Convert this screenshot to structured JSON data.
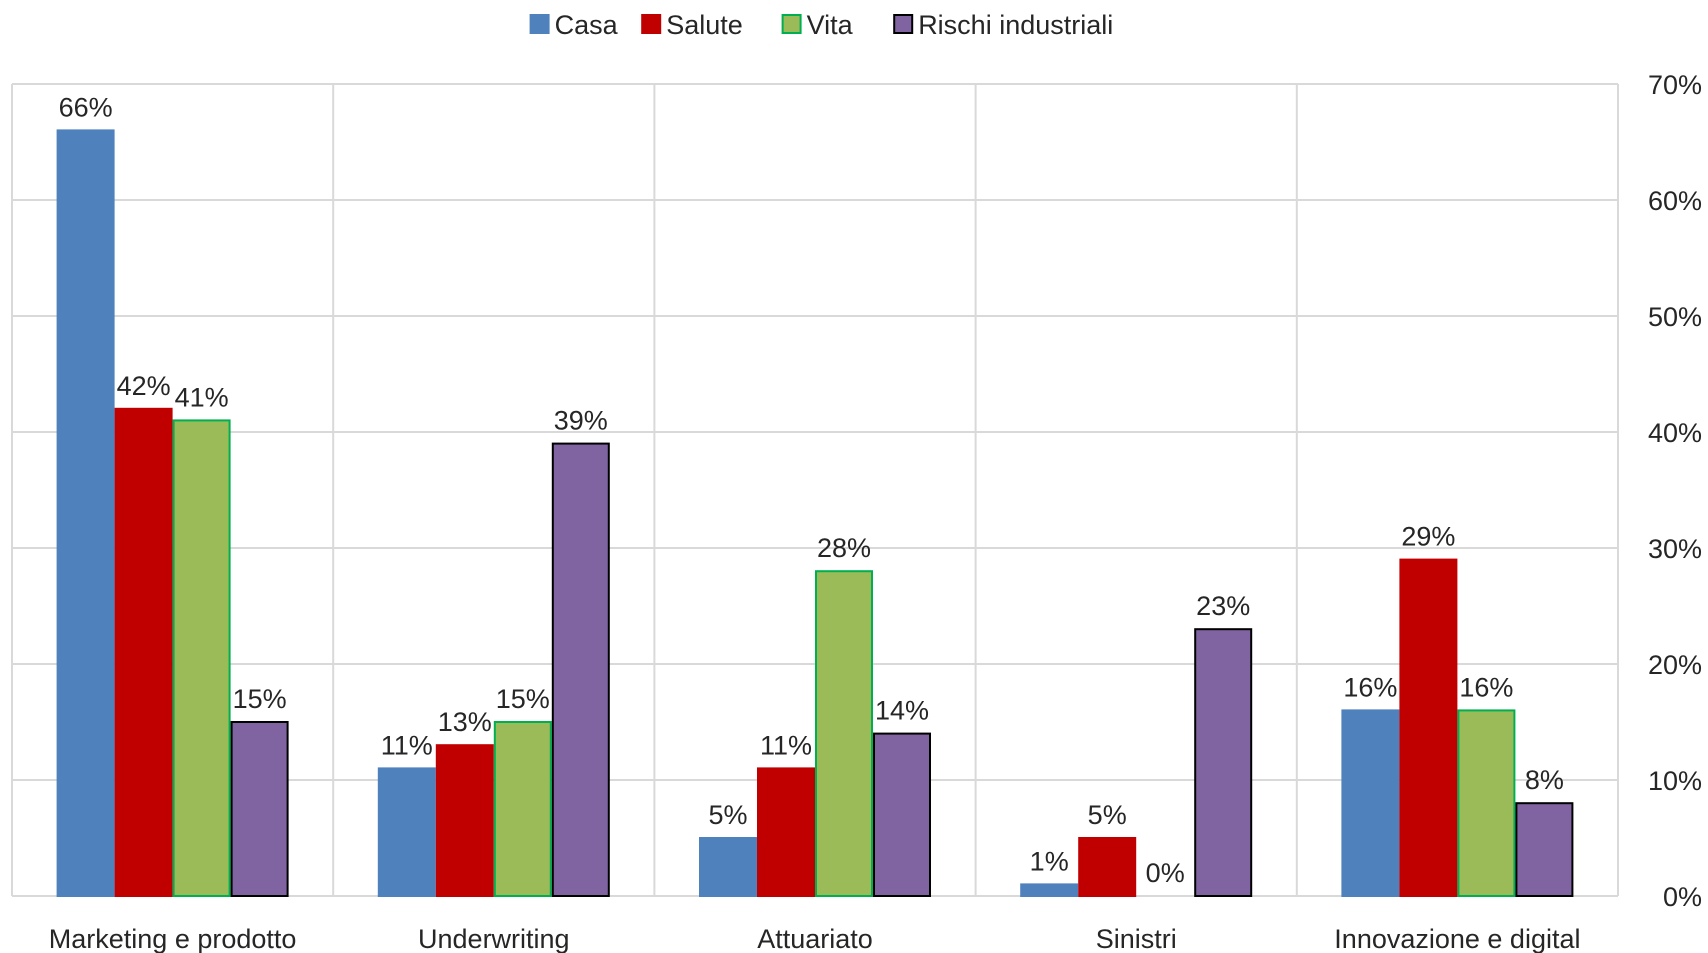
{
  "chart_data": {
    "type": "bar",
    "categories": [
      "Marketing e prodotto",
      "Underwriting",
      "Attuariato",
      "Sinistri",
      "Innovazione e digital"
    ],
    "series": [
      {
        "name": "Casa",
        "values": [
          66,
          11,
          5,
          1,
          16
        ],
        "labels": [
          "66%",
          "11%",
          "5%",
          "1%",
          "16%"
        ],
        "color": "#4f81bd",
        "stroke": "#4f81bd"
      },
      {
        "name": "Salute",
        "values": [
          42,
          13,
          11,
          5,
          29
        ],
        "labels": [
          "42%",
          "13%",
          "11%",
          "5%",
          "29%"
        ],
        "color": "#c00000",
        "stroke": "#c00000"
      },
      {
        "name": "Vita",
        "values": [
          41,
          15,
          28,
          0,
          16
        ],
        "labels": [
          "41%",
          "15%",
          "28%",
          "0%",
          "16%"
        ],
        "color": "#9bbb59",
        "stroke": "#00b050"
      },
      {
        "name": "Rischi industriali",
        "values": [
          15,
          39,
          14,
          23,
          8
        ],
        "labels": [
          "15%",
          "39%",
          "14%",
          "23%",
          "8%"
        ],
        "color": "#8064a2",
        "stroke": "#000000"
      }
    ],
    "y_ticks": [
      "0%",
      "10%",
      "20%",
      "30%",
      "40%",
      "50%",
      "60%",
      "70%"
    ],
    "ylim": [
      0,
      70
    ],
    "y_axis_side": "right",
    "grid": true,
    "legend_position": "top-center"
  }
}
